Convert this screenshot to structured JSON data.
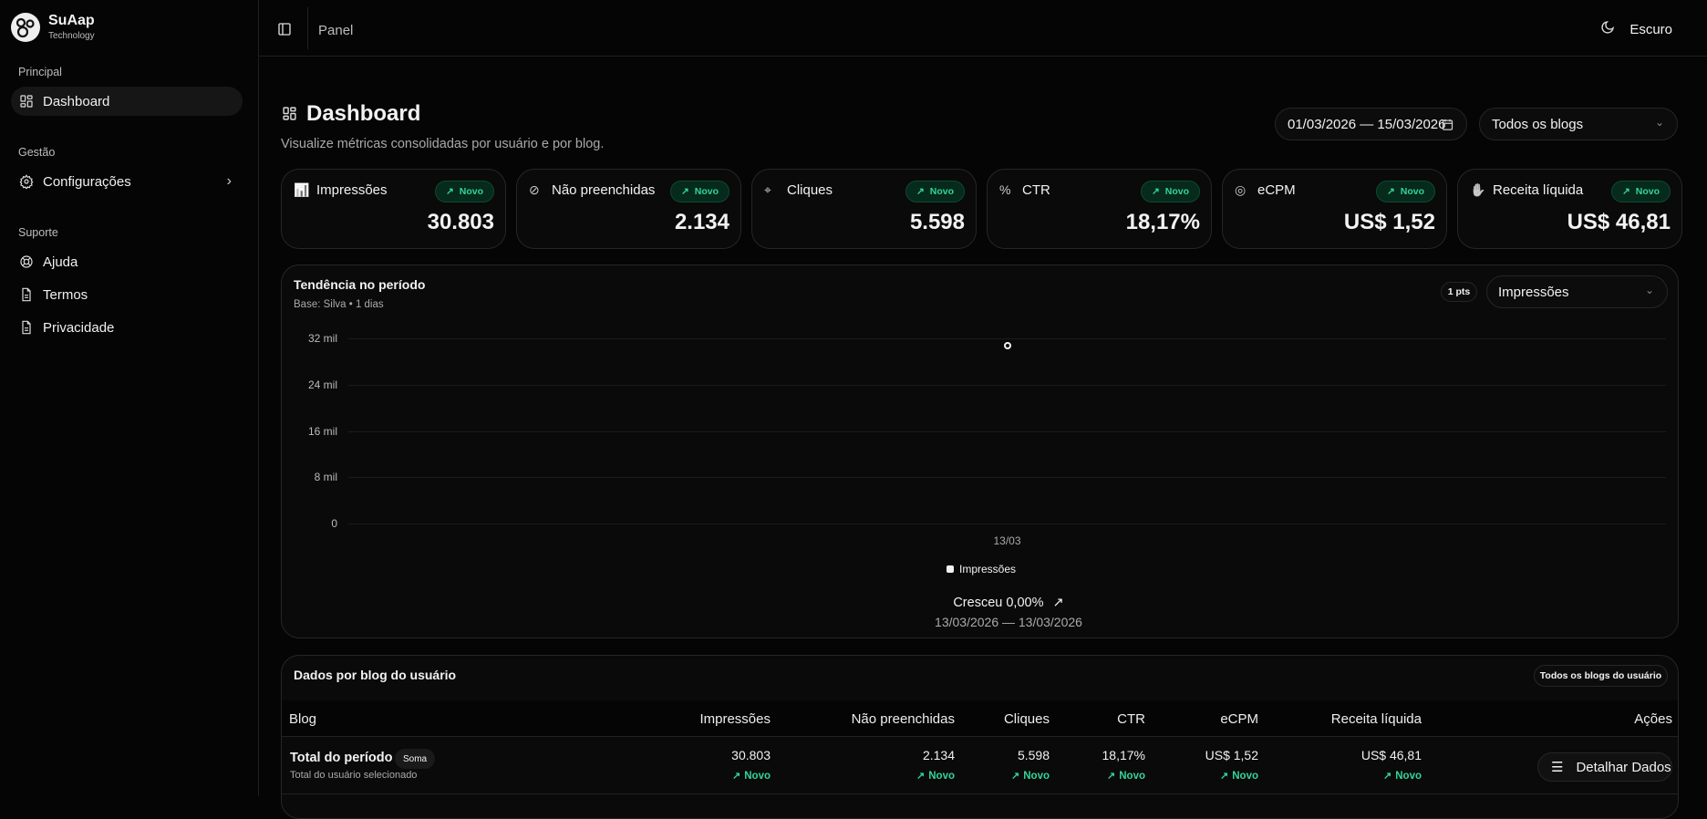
{
  "brand": {
    "name": "SuAap",
    "subtitle": "Technology"
  },
  "sidebar": {
    "sections": [
      {
        "title": "Principal",
        "items": [
          {
            "label": "Dashboard",
            "icon": "layout-dashboard-icon",
            "active": true
          }
        ]
      },
      {
        "title": "Gestão",
        "items": [
          {
            "label": "Configurações",
            "icon": "gear-icon"
          }
        ]
      },
      {
        "title": "Suporte",
        "items": [
          {
            "label": "Ajuda",
            "icon": "lifebuoy-icon"
          },
          {
            "label": "Termos",
            "icon": "file-text-icon"
          },
          {
            "label": "Privacidade",
            "icon": "file-text-icon"
          }
        ]
      }
    ]
  },
  "topbar": {
    "breadcrumb": "Panel",
    "theme_label": "Escuro"
  },
  "header": {
    "title": "Dashboard",
    "subtitle": "Visualize métricas consolidadas por usuário e por blog.",
    "date_range": "01/03/2026 — 15/03/2026",
    "blog_select": "Todos os blogs"
  },
  "metrics": [
    {
      "label": "Impressões",
      "value": "30.803",
      "badge": "Novo",
      "icon": "bar-chart-icon"
    },
    {
      "label": "Não preenchidas",
      "value": "2.134",
      "badge": "Novo",
      "icon": "ban-icon"
    },
    {
      "label": "Cliques",
      "value": "5.598",
      "badge": "Novo",
      "icon": "pointer-click-icon"
    },
    {
      "label": "CTR",
      "value": "18,17%",
      "badge": "Novo",
      "icon": "percent-icon"
    },
    {
      "label": "eCPM",
      "value": "US$ 1,52",
      "badge": "Novo",
      "icon": "coins-icon"
    },
    {
      "label": "Receita líquida",
      "value": "US$ 46,81",
      "badge": "Novo",
      "icon": "hand-coins-icon"
    }
  ],
  "trend": {
    "title": "Tendência no período",
    "subtitle": "Base: Silva • 1 dias",
    "points_badge": "1 pts",
    "metric_select": "Impressões",
    "growth": "Cresceu 0,00%",
    "range": "13/03/2026 — 13/03/2026"
  },
  "chart_data": {
    "type": "line",
    "categories": [
      "13/03"
    ],
    "series": [
      {
        "name": "Impressões",
        "values": [
          30803
        ]
      }
    ],
    "ylim": [
      0,
      32000
    ],
    "yticks": [
      "0",
      "8 mil",
      "16 mil",
      "24 mil",
      "32 mil"
    ],
    "grid": true,
    "legend": "bottom",
    "color": "#f2f2f2"
  },
  "table": {
    "title": "Dados por blog do usuário",
    "filter_badge": "Todos os blogs do usuário",
    "columns": [
      "Blog",
      "Impressões",
      "Não preenchidas",
      "Cliques",
      "CTR",
      "eCPM",
      "Receita líquida",
      "Ações"
    ],
    "rows": [
      {
        "name": "Total do período",
        "tag": "Soma",
        "sub": "Total do usuário selecionado",
        "values": [
          "30.803",
          "2.134",
          "5.598",
          "18,17%",
          "US$ 1,52",
          "US$ 46,81"
        ],
        "trend": "Novo",
        "action": "Detalhar Dados"
      }
    ]
  },
  "colors": {
    "accent": "#34d399",
    "background": "#050505",
    "card": "#0a0a0a"
  }
}
